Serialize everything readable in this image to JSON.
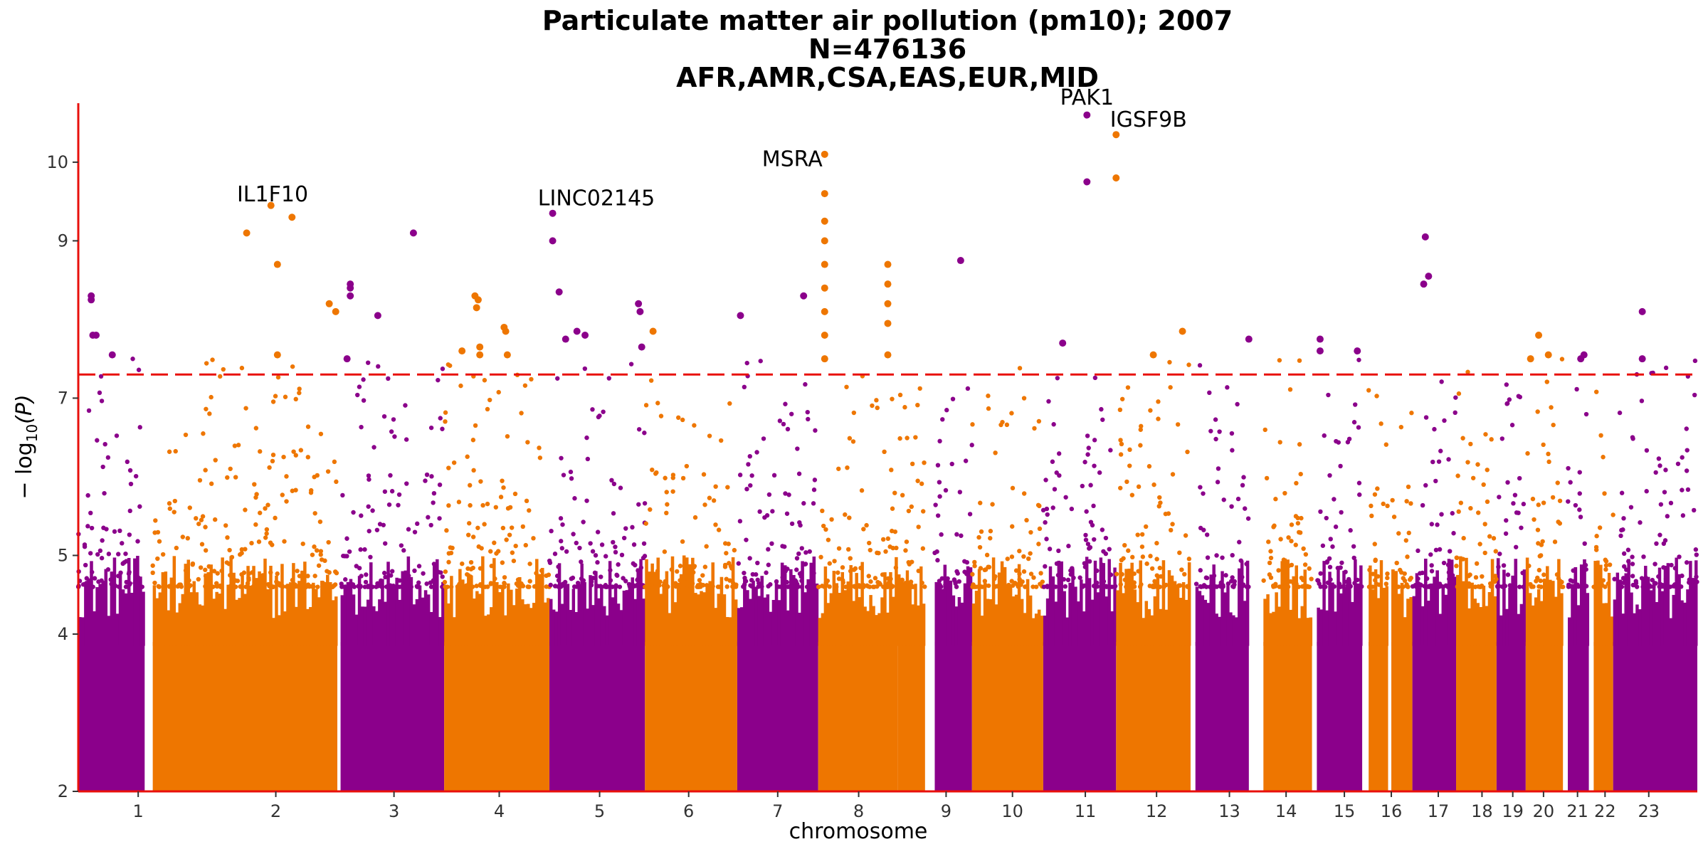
{
  "chart_data": {
    "type": "scatter",
    "title": [
      "Particulate matter air pollution (pm10); 2007",
      "N=476136",
      "AFR,AMR,CSA,EAS,EUR,MID"
    ],
    "xlabel": "chromosome",
    "ylabel": "− log10(P)",
    "ylabel_main": "− log",
    "ylabel_sub": "10",
    "ylabel_rest": "(P)",
    "ylim": [
      2,
      10.75
    ],
    "yticks": [
      2,
      4,
      5,
      7,
      9,
      10
    ],
    "significance_threshold": 7.3,
    "grid": false,
    "colors": {
      "odd": "#8B008B",
      "even": "#EE7600",
      "threshold": "#E8100C",
      "axis": "#E8100C"
    },
    "chromosomes": [
      {
        "label": "1",
        "span": [
          0.0,
          0.041
        ],
        "tick": 0.037
      },
      {
        "label": "2",
        "span": [
          0.046,
          0.16
        ],
        "tick": 0.122
      },
      {
        "label": "3",
        "span": [
          0.162,
          0.226
        ],
        "tick": 0.195
      },
      {
        "label": "4",
        "span": [
          0.226,
          0.291
        ],
        "tick": 0.26
      },
      {
        "label": "5",
        "span": [
          0.291,
          0.35
        ],
        "tick": 0.322
      },
      {
        "label": "6",
        "span": [
          0.35,
          0.407
        ],
        "tick": 0.377
      },
      {
        "label": "7",
        "span": [
          0.407,
          0.457
        ],
        "tick": 0.432
      },
      {
        "label": "8",
        "span": [
          0.457,
          0.506
        ],
        "tick": 0.482
      },
      {
        "label": "8",
        "span": [
          0.506,
          0.523
        ],
        "tick": 0.482
      },
      {
        "label": "9",
        "span": [
          0.529,
          0.552
        ],
        "tick": 0.536
      },
      {
        "label": "10",
        "span": [
          0.552,
          0.596
        ],
        "tick": 0.577
      },
      {
        "label": "11",
        "span": [
          0.596,
          0.641
        ],
        "tick": 0.622
      },
      {
        "label": "12",
        "span": [
          0.641,
          0.687
        ],
        "tick": 0.666
      },
      {
        "label": "13",
        "span": [
          0.69,
          0.723
        ],
        "tick": 0.711
      },
      {
        "label": "14",
        "span": [
          0.732,
          0.762
        ],
        "tick": 0.746
      },
      {
        "label": "15",
        "span": [
          0.765,
          0.793
        ],
        "tick": 0.782
      },
      {
        "label": "16",
        "span": [
          0.797,
          0.809
        ],
        "tick": 0.811
      },
      {
        "label": "16",
        "span": [
          0.811,
          0.824
        ],
        "tick": 0.811
      },
      {
        "label": "17",
        "span": [
          0.824,
          0.851
        ],
        "tick": 0.84
      },
      {
        "label": "18",
        "span": [
          0.851,
          0.876
        ],
        "tick": 0.867
      },
      {
        "label": "19",
        "span": [
          0.876,
          0.894
        ],
        "tick": 0.886
      },
      {
        "label": "20",
        "span": [
          0.894,
          0.917
        ],
        "tick": 0.905
      },
      {
        "label": "21",
        "span": [
          0.92,
          0.933
        ],
        "tick": 0.926
      },
      {
        "label": "22",
        "span": [
          0.936,
          0.948
        ],
        "tick": 0.943
      },
      {
        "label": "23",
        "span": [
          0.948,
          1.0
        ],
        "tick": 0.97
      }
    ],
    "annotations": [
      {
        "text": "IL1F10",
        "x": 0.12,
        "y": 9.5
      },
      {
        "text": "LINC02145",
        "x": 0.32,
        "y": 9.45
      },
      {
        "text": "MSRA",
        "x": 0.441,
        "y": 9.95
      },
      {
        "text": "PAK1",
        "x": 0.623,
        "y": 10.73
      },
      {
        "text": "IGSF9B",
        "x": 0.661,
        "y": 10.45
      }
    ],
    "top_hits": [
      {
        "x": 0.008,
        "y": 8.3
      },
      {
        "x": 0.008,
        "y": 8.25
      },
      {
        "x": 0.009,
        "y": 7.8
      },
      {
        "x": 0.011,
        "y": 7.8
      },
      {
        "x": 0.021,
        "y": 7.55
      },
      {
        "x": 0.104,
        "y": 9.1
      },
      {
        "x": 0.119,
        "y": 9.45
      },
      {
        "x": 0.123,
        "y": 8.7
      },
      {
        "x": 0.123,
        "y": 7.55
      },
      {
        "x": 0.132,
        "y": 9.3
      },
      {
        "x": 0.155,
        "y": 8.2
      },
      {
        "x": 0.159,
        "y": 8.1
      },
      {
        "x": 0.166,
        "y": 7.5
      },
      {
        "x": 0.168,
        "y": 8.45
      },
      {
        "x": 0.168,
        "y": 8.4
      },
      {
        "x": 0.168,
        "y": 8.3
      },
      {
        "x": 0.185,
        "y": 8.05
      },
      {
        "x": 0.207,
        "y": 9.1
      },
      {
        "x": 0.237,
        "y": 7.6
      },
      {
        "x": 0.245,
        "y": 8.3
      },
      {
        "x": 0.246,
        "y": 8.15
      },
      {
        "x": 0.247,
        "y": 8.25
      },
      {
        "x": 0.248,
        "y": 7.55
      },
      {
        "x": 0.248,
        "y": 7.65
      },
      {
        "x": 0.264,
        "y": 7.85
      },
      {
        "x": 0.265,
        "y": 7.55
      },
      {
        "x": 0.263,
        "y": 7.9
      },
      {
        "x": 0.293,
        "y": 9.35
      },
      {
        "x": 0.293,
        "y": 9.0
      },
      {
        "x": 0.297,
        "y": 8.35
      },
      {
        "x": 0.301,
        "y": 7.75
      },
      {
        "x": 0.308,
        "y": 7.85
      },
      {
        "x": 0.313,
        "y": 7.8
      },
      {
        "x": 0.346,
        "y": 8.2
      },
      {
        "x": 0.347,
        "y": 8.1
      },
      {
        "x": 0.348,
        "y": 7.65
      },
      {
        "x": 0.355,
        "y": 7.85
      },
      {
        "x": 0.409,
        "y": 8.05
      },
      {
        "x": 0.448,
        "y": 8.3
      },
      {
        "x": 0.461,
        "y": 10.1
      },
      {
        "x": 0.461,
        "y": 9.6
      },
      {
        "x": 0.461,
        "y": 9.25
      },
      {
        "x": 0.461,
        "y": 9.0
      },
      {
        "x": 0.461,
        "y": 8.7
      },
      {
        "x": 0.461,
        "y": 8.4
      },
      {
        "x": 0.461,
        "y": 8.1
      },
      {
        "x": 0.461,
        "y": 7.8
      },
      {
        "x": 0.461,
        "y": 7.5
      },
      {
        "x": 0.5,
        "y": 8.7
      },
      {
        "x": 0.5,
        "y": 8.45
      },
      {
        "x": 0.5,
        "y": 8.2
      },
      {
        "x": 0.5,
        "y": 7.95
      },
      {
        "x": 0.5,
        "y": 7.55
      },
      {
        "x": 0.545,
        "y": 8.75
      },
      {
        "x": 0.608,
        "y": 7.7
      },
      {
        "x": 0.623,
        "y": 10.6
      },
      {
        "x": 0.623,
        "y": 9.75
      },
      {
        "x": 0.641,
        "y": 10.35
      },
      {
        "x": 0.641,
        "y": 9.8
      },
      {
        "x": 0.664,
        "y": 7.55
      },
      {
        "x": 0.682,
        "y": 7.85
      },
      {
        "x": 0.723,
        "y": 7.75
      },
      {
        "x": 0.767,
        "y": 7.75
      },
      {
        "x": 0.767,
        "y": 7.6
      },
      {
        "x": 0.79,
        "y": 7.6
      },
      {
        "x": 0.831,
        "y": 8.45
      },
      {
        "x": 0.834,
        "y": 8.55
      },
      {
        "x": 0.832,
        "y": 9.05
      },
      {
        "x": 0.897,
        "y": 7.5
      },
      {
        "x": 0.902,
        "y": 7.8
      },
      {
        "x": 0.908,
        "y": 7.55
      },
      {
        "x": 0.928,
        "y": 7.5
      },
      {
        "x": 0.93,
        "y": 7.55
      },
      {
        "x": 0.966,
        "y": 8.1
      },
      {
        "x": 0.966,
        "y": 7.5
      }
    ]
  }
}
